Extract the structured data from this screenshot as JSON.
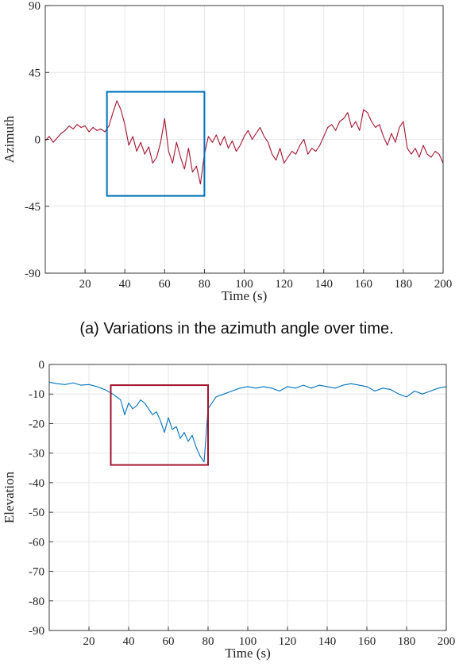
{
  "captions": {
    "a": "(a) Variations in the azimuth angle over time.",
    "b": ""
  },
  "colors": {
    "azimuth_line": "#A2142F",
    "elevation_line": "#0072BD",
    "azimuth_box": "#0072BD",
    "elevation_box": "#A2142F"
  },
  "chart_data": [
    {
      "type": "line",
      "title": "",
      "xlabel": "Time (s)",
      "ylabel": "Azimuth",
      "xlim": [
        0,
        200
      ],
      "ylim": [
        -90,
        90
      ],
      "xticks": [
        20,
        40,
        60,
        80,
        100,
        120,
        140,
        160,
        180,
        200
      ],
      "yticks": [
        90,
        45,
        0,
        -45,
        -90
      ],
      "grid": true,
      "series": [
        {
          "x": [
            0,
            2,
            4,
            6,
            8,
            10,
            12,
            14,
            16,
            18,
            20,
            22,
            24,
            26,
            28,
            30,
            32,
            34,
            36,
            38,
            40,
            42,
            44,
            46,
            48,
            50,
            52,
            54,
            56,
            58,
            60,
            62,
            64,
            66,
            68,
            70,
            72,
            74,
            76,
            78,
            80,
            82,
            84,
            86,
            88,
            90,
            92,
            94,
            96,
            98,
            100,
            102,
            104,
            106,
            108,
            110,
            112,
            114,
            116,
            118,
            120,
            122,
            124,
            126,
            128,
            130,
            132,
            134,
            136,
            138,
            140,
            142,
            144,
            146,
            148,
            150,
            152,
            154,
            156,
            158,
            160,
            162,
            164,
            166,
            168,
            170,
            172,
            174,
            176,
            178,
            180,
            182,
            184,
            186,
            188,
            190,
            192,
            194,
            196,
            198,
            200
          ],
          "y": [
            -1,
            2,
            -2,
            1,
            4,
            6,
            9,
            7,
            10,
            8,
            9,
            5,
            8,
            6,
            7,
            5,
            9,
            18,
            26,
            20,
            10,
            -4,
            2,
            -8,
            -2,
            -10,
            -5,
            -16,
            -12,
            -2,
            14,
            -8,
            -16,
            -2,
            -12,
            -20,
            -6,
            -22,
            -18,
            -30,
            -10,
            2,
            -2,
            3,
            -4,
            2,
            -6,
            -1,
            -8,
            -4,
            2,
            6,
            0,
            4,
            8,
            2,
            -2,
            -10,
            -14,
            -6,
            -16,
            -12,
            -8,
            -10,
            -4,
            0,
            -10,
            -6,
            -8,
            -4,
            2,
            8,
            10,
            6,
            12,
            14,
            18,
            8,
            12,
            6,
            20,
            18,
            12,
            8,
            10,
            2,
            -4,
            4,
            -2,
            8,
            12,
            -6,
            -10,
            -6,
            -12,
            -4,
            -10,
            -12,
            -8,
            -10,
            -16
          ]
        }
      ],
      "annotation_box": {
        "x": [
          31,
          80
        ],
        "y": [
          -38,
          32
        ]
      }
    },
    {
      "type": "line",
      "title": "",
      "xlabel": "Time (s)",
      "ylabel": "Elevation",
      "xlim": [
        0,
        200
      ],
      "ylim": [
        -90,
        0
      ],
      "xticks": [
        20,
        40,
        60,
        80,
        100,
        120,
        140,
        160,
        180,
        200
      ],
      "yticks": [
        0,
        -10,
        -20,
        -30,
        -40,
        -50,
        -60,
        -70,
        -80,
        -90
      ],
      "grid": true,
      "series": [
        {
          "x": [
            0,
            4,
            8,
            12,
            16,
            20,
            24,
            28,
            32,
            34,
            36,
            38,
            40,
            42,
            44,
            46,
            48,
            50,
            52,
            54,
            56,
            58,
            60,
            62,
            64,
            66,
            68,
            70,
            72,
            74,
            76,
            78,
            80,
            84,
            88,
            92,
            96,
            100,
            104,
            108,
            112,
            116,
            120,
            124,
            128,
            132,
            136,
            140,
            144,
            148,
            152,
            156,
            160,
            164,
            168,
            172,
            176,
            180,
            184,
            188,
            192,
            196,
            200
          ],
          "y": [
            -6,
            -6.5,
            -6.8,
            -6.2,
            -7,
            -6.8,
            -7.5,
            -8.5,
            -10,
            -11,
            -12,
            -17,
            -13,
            -15,
            -14,
            -12,
            -13,
            -15,
            -17,
            -16,
            -19,
            -23,
            -18,
            -22,
            -21,
            -25,
            -23,
            -26,
            -24,
            -28,
            -31,
            -33,
            -15,
            -11,
            -10,
            -9,
            -8,
            -7.5,
            -8,
            -7.5,
            -8,
            -9,
            -7.5,
            -8,
            -7,
            -8,
            -7,
            -7.5,
            -8,
            -7,
            -6.5,
            -7,
            -7.5,
            -9,
            -8,
            -8.5,
            -10,
            -11,
            -9,
            -10,
            -9,
            -8,
            -7.5
          ]
        }
      ],
      "annotation_box": {
        "x": [
          31,
          80
        ],
        "y": [
          -34,
          -7
        ]
      }
    }
  ]
}
